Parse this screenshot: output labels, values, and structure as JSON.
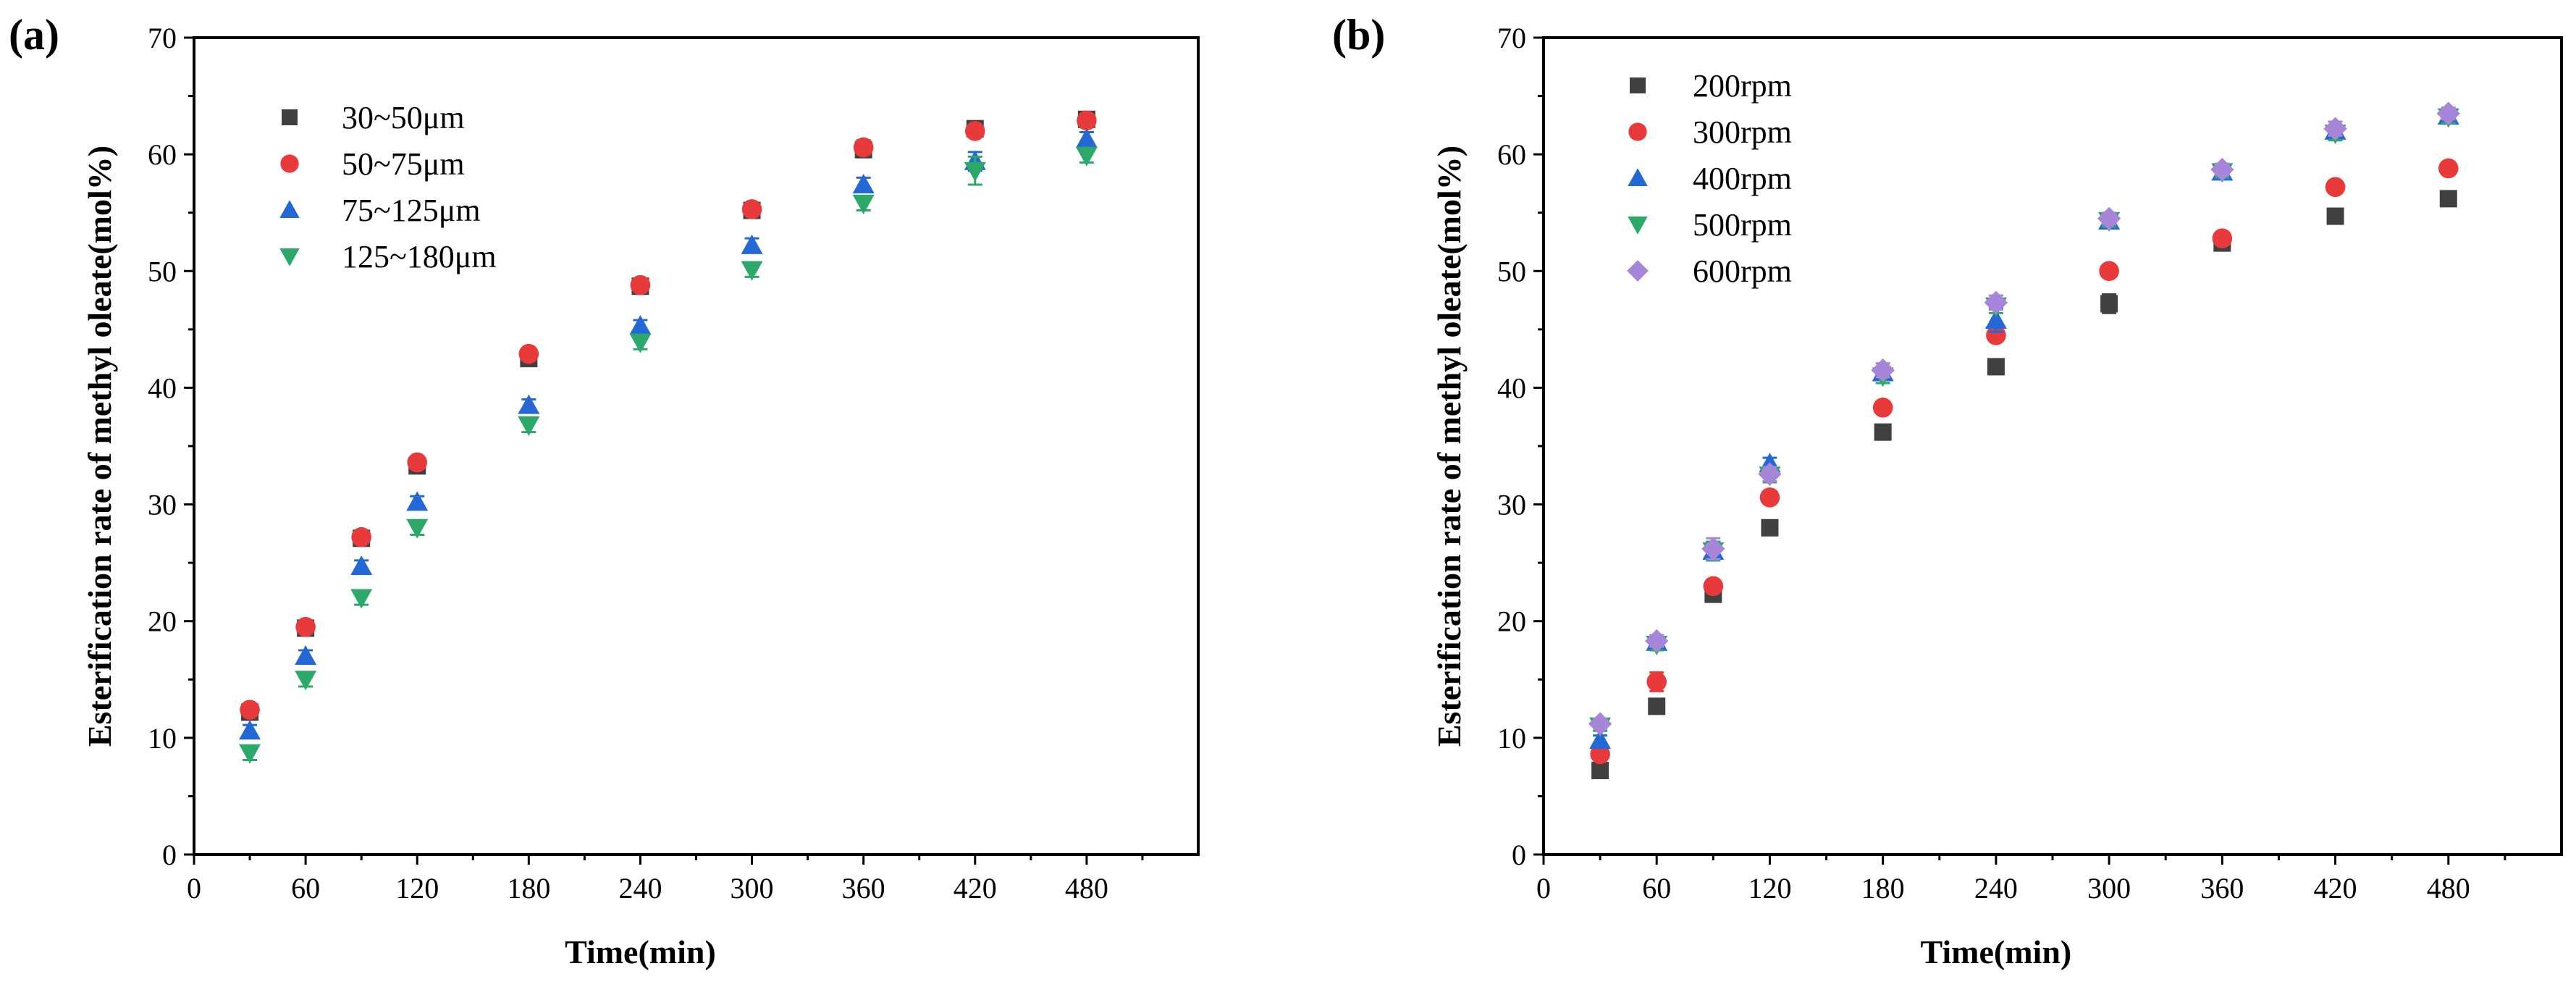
{
  "chart_data": [
    {
      "type": "scatter",
      "panel_label": "(a)",
      "xlabel": "Time(min)",
      "ylabel": "Esterification rate of methyl oleate(mol%)",
      "xlim": [
        0,
        540
      ],
      "ylim": [
        0,
        70
      ],
      "xticks": [
        0,
        60,
        120,
        180,
        240,
        300,
        360,
        420,
        480
      ],
      "yticks": [
        0,
        10,
        20,
        30,
        40,
        50,
        60,
        70
      ],
      "grid": false,
      "legend_position": "top-left",
      "x": [
        30,
        60,
        90,
        120,
        180,
        240,
        300,
        360,
        420,
        480
      ],
      "series": [
        {
          "name": "30~50μm",
          "marker": "square",
          "color": "#404040",
          "values": [
            12.2,
            19.4,
            27.1,
            33.3,
            42.5,
            48.7,
            55.2,
            60.4,
            62.2,
            63.0
          ],
          "errors": [
            0.4,
            0.4,
            0.4,
            0.4,
            0.4,
            0.4,
            0.4,
            0.6,
            0.4,
            0.4
          ]
        },
        {
          "name": "50~75μm",
          "marker": "circle",
          "color": "#e8393b",
          "values": [
            12.4,
            19.5,
            27.2,
            33.6,
            42.9,
            48.8,
            55.3,
            60.6,
            62.0,
            62.9
          ],
          "errors": [
            0.4,
            0.4,
            0.4,
            0.4,
            0.4,
            0.4,
            0.4,
            0.6,
            0.4,
            0.4
          ]
        },
        {
          "name": "75~125μm",
          "marker": "triangle-up",
          "color": "#2468d6",
          "values": [
            10.6,
            17.0,
            24.7,
            30.2,
            38.5,
            45.3,
            52.2,
            57.4,
            59.4,
            61.3
          ],
          "errors": [
            0.5,
            0.5,
            0.5,
            0.5,
            0.5,
            0.5,
            0.6,
            0.6,
            0.8,
            0.6
          ]
        },
        {
          "name": "125~180μm",
          "marker": "triangle-down",
          "color": "#2ca86a",
          "values": [
            8.7,
            15.0,
            22.0,
            28.0,
            36.8,
            43.9,
            50.1,
            55.8,
            58.6,
            59.9
          ],
          "errors": [
            0.6,
            0.6,
            0.6,
            0.6,
            0.6,
            0.6,
            0.6,
            0.6,
            1.2,
            0.6
          ]
        }
      ]
    },
    {
      "type": "scatter",
      "panel_label": "(b)",
      "xlabel": "Time(min)",
      "ylabel": "Esterification rate of methyl oleate(mol%)",
      "xlim": [
        0,
        540
      ],
      "ylim": [
        0,
        70
      ],
      "xticks": [
        0,
        60,
        120,
        180,
        240,
        300,
        360,
        420,
        480
      ],
      "yticks": [
        0,
        10,
        20,
        30,
        40,
        50,
        60,
        70
      ],
      "grid": false,
      "legend_position": "top-left",
      "x": [
        30,
        60,
        90,
        120,
        180,
        240,
        300,
        360,
        420,
        480
      ],
      "series": [
        {
          "name": "200rpm",
          "marker": "square",
          "color": "#404040",
          "values": [
            7.2,
            12.7,
            22.3,
            28.0,
            36.2,
            41.8,
            47.2,
            52.4,
            54.7,
            56.2
          ],
          "errors": [
            0.6,
            0.6,
            0.4,
            0.4,
            0.4,
            0.6,
            0.8,
            0.5,
            0.6,
            0.3
          ]
        },
        {
          "name": "300rpm",
          "marker": "circle",
          "color": "#e8393b",
          "values": [
            8.6,
            14.8,
            23.0,
            30.6,
            38.3,
            44.5,
            50.0,
            52.8,
            57.2,
            58.8
          ],
          "errors": [
            0.5,
            0.8,
            0.5,
            0.5,
            0.5,
            0.5,
            0.5,
            0.5,
            0.5,
            0.4
          ]
        },
        {
          "name": "400rpm",
          "marker": "triangle-up",
          "color": "#2468d6",
          "values": [
            9.8,
            18.2,
            26.0,
            33.5,
            41.3,
            45.8,
            54.3,
            58.5,
            62.0,
            63.3
          ],
          "errors": [
            0.4,
            0.5,
            0.8,
            0.5,
            0.5,
            1.0,
            0.5,
            0.5,
            0.5,
            0.5
          ]
        },
        {
          "name": "500rpm",
          "marker": "triangle-down",
          "color": "#2ca86a",
          "values": [
            11.0,
            18.0,
            26.0,
            32.5,
            41.0,
            47.0,
            54.3,
            58.5,
            61.8,
            63.2
          ],
          "errors": [
            0.4,
            0.5,
            0.8,
            0.6,
            0.6,
            0.6,
            0.5,
            0.5,
            0.6,
            0.5
          ]
        },
        {
          "name": "600rpm",
          "marker": "diamond",
          "color": "#a785d8",
          "values": [
            11.2,
            18.3,
            26.2,
            32.6,
            41.5,
            47.3,
            54.5,
            58.7,
            62.2,
            63.5
          ],
          "errors": [
            0.4,
            0.5,
            0.9,
            0.6,
            0.6,
            0.6,
            0.5,
            0.5,
            0.6,
            0.5
          ]
        }
      ]
    }
  ]
}
